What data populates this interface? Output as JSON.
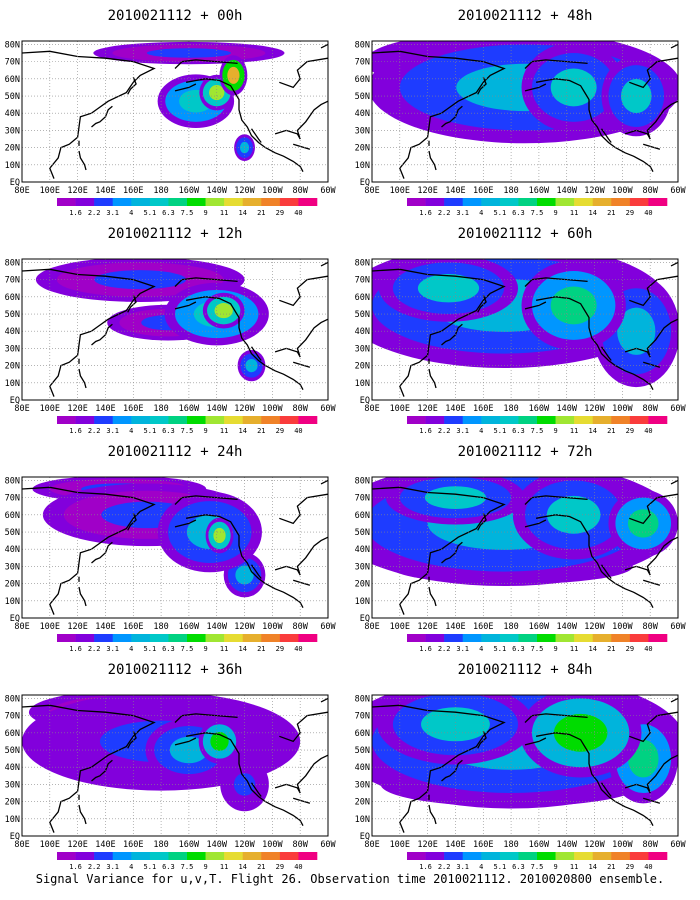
{
  "footer": "Signal Variance for u,v,T. Flight 26. Observation time 2010021112. 2010020800 ensemble.",
  "colorbar": {
    "labels": [
      "1.6",
      "2.2",
      "3.1",
      "4",
      "5.1",
      "6.3",
      "7.5",
      "9",
      "11",
      "14",
      "21",
      "29",
      "40"
    ],
    "colors": [
      "#a000c8",
      "#8200dc",
      "#1e3cff",
      "#0096ff",
      "#00b4dc",
      "#00c8c8",
      "#00d282",
      "#00dc00",
      "#a0e632",
      "#e6dc32",
      "#e6af2d",
      "#f08228",
      "#fa3c3c",
      "#f00082"
    ]
  },
  "axes": {
    "x_ticks": [
      "80E",
      "100E",
      "120E",
      "140E",
      "160E",
      "180",
      "160W",
      "140W",
      "120W",
      "100W",
      "80W",
      "60W"
    ],
    "y_ticks": [
      "EQ",
      "10N",
      "20N",
      "30N",
      "40N",
      "50N",
      "60N",
      "70N",
      "80N"
    ]
  },
  "chart_data": [
    {
      "type": "heatmap",
      "title": "2010021112 + 00h",
      "lead_hours": 0,
      "blobs": [
        {
          "lon": 205,
          "lat": 47,
          "value": 6,
          "rx": 22,
          "ry": 12
        },
        {
          "lon": 220,
          "lat": 52,
          "value": 9,
          "rx": 10,
          "ry": 8
        },
        {
          "lon": 232,
          "lat": 62,
          "value": 14,
          "rx": 8,
          "ry": 9
        },
        {
          "lon": 200,
          "lat": 75,
          "value": 2.5,
          "rx": 55,
          "ry": 5
        },
        {
          "lon": 240,
          "lat": 20,
          "value": 5,
          "rx": 6,
          "ry": 6
        }
      ]
    },
    {
      "type": "heatmap",
      "title": "2010021112 + 12h",
      "lead_hours": 12,
      "blobs": [
        {
          "lon": 220,
          "lat": 50,
          "value": 6,
          "rx": 30,
          "ry": 14
        },
        {
          "lon": 225,
          "lat": 52,
          "value": 9,
          "rx": 12,
          "ry": 8
        },
        {
          "lon": 165,
          "lat": 70,
          "value": 2.5,
          "rx": 60,
          "ry": 10
        },
        {
          "lon": 245,
          "lat": 20,
          "value": 5,
          "rx": 8,
          "ry": 7
        },
        {
          "lon": 185,
          "lat": 45,
          "value": 2.5,
          "rx": 35,
          "ry": 8
        }
      ]
    },
    {
      "type": "heatmap",
      "title": "2010021112 + 24h",
      "lead_hours": 24,
      "blobs": [
        {
          "lon": 215,
          "lat": 50,
          "value": 5,
          "rx": 30,
          "ry": 18
        },
        {
          "lon": 222,
          "lat": 48,
          "value": 9,
          "rx": 8,
          "ry": 8
        },
        {
          "lon": 170,
          "lat": 60,
          "value": 2.5,
          "rx": 60,
          "ry": 14
        },
        {
          "lon": 240,
          "lat": 25,
          "value": 4,
          "rx": 12,
          "ry": 10
        },
        {
          "lon": 150,
          "lat": 75,
          "value": 2.2,
          "rx": 50,
          "ry": 6
        }
      ]
    },
    {
      "type": "heatmap",
      "title": "2010021112 + 36h",
      "lead_hours": 36,
      "blobs": [
        {
          "lon": 180,
          "lat": 55,
          "value": 3,
          "rx": 80,
          "ry": 22
        },
        {
          "lon": 222,
          "lat": 55,
          "value": 7.5,
          "rx": 12,
          "ry": 10
        },
        {
          "lon": 200,
          "lat": 50,
          "value": 4,
          "rx": 25,
          "ry": 14
        },
        {
          "lon": 240,
          "lat": 30,
          "value": 3,
          "rx": 14,
          "ry": 12
        },
        {
          "lon": 160,
          "lat": 72,
          "value": 2.5,
          "rx": 60,
          "ry": 10
        }
      ]
    },
    {
      "type": "heatmap",
      "title": "2010021112 + 48h",
      "lead_hours": 48,
      "blobs": [
        {
          "lon": 190,
          "lat": 55,
          "value": 4,
          "rx": 90,
          "ry": 25
        },
        {
          "lon": 225,
          "lat": 55,
          "value": 5.1,
          "rx": 30,
          "ry": 20
        },
        {
          "lon": 150,
          "lat": 70,
          "value": 3.1,
          "rx": 60,
          "ry": 12
        },
        {
          "lon": 270,
          "lat": 50,
          "value": 5.1,
          "rx": 20,
          "ry": 18
        },
        {
          "lon": 170,
          "lat": 40,
          "value": 2.2,
          "rx": 60,
          "ry": 8
        }
      ]
    },
    {
      "type": "heatmap",
      "title": "2010021112 + 60h",
      "lead_hours": 60,
      "blobs": [
        {
          "lon": 175,
          "lat": 55,
          "value": 4,
          "rx": 95,
          "ry": 28
        },
        {
          "lon": 225,
          "lat": 55,
          "value": 6.3,
          "rx": 30,
          "ry": 20
        },
        {
          "lon": 135,
          "lat": 65,
          "value": 5.1,
          "rx": 40,
          "ry": 15
        },
        {
          "lon": 270,
          "lat": 40,
          "value": 4,
          "rx": 25,
          "ry": 25
        },
        {
          "lon": 170,
          "lat": 35,
          "value": 2.2,
          "rx": 60,
          "ry": 8
        }
      ]
    },
    {
      "type": "heatmap",
      "title": "2010021112 + 72h",
      "lead_hours": 72,
      "blobs": [
        {
          "lon": 175,
          "lat": 55,
          "value": 4,
          "rx": 100,
          "ry": 28
        },
        {
          "lon": 225,
          "lat": 60,
          "value": 5.1,
          "rx": 35,
          "ry": 20
        },
        {
          "lon": 140,
          "lat": 70,
          "value": 5.1,
          "rx": 40,
          "ry": 12
        },
        {
          "lon": 275,
          "lat": 55,
          "value": 6.3,
          "rx": 20,
          "ry": 15
        },
        {
          "lon": 180,
          "lat": 30,
          "value": 2.2,
          "rx": 70,
          "ry": 8
        }
      ]
    },
    {
      "type": "heatmap",
      "title": "2010021112 + 84h",
      "lead_hours": 84,
      "blobs": [
        {
          "lon": 180,
          "lat": 55,
          "value": 4,
          "rx": 100,
          "ry": 30
        },
        {
          "lon": 230,
          "lat": 60,
          "value": 7.5,
          "rx": 35,
          "ry": 20
        },
        {
          "lon": 140,
          "lat": 65,
          "value": 5.1,
          "rx": 45,
          "ry": 18
        },
        {
          "lon": 275,
          "lat": 45,
          "value": 6.3,
          "rx": 20,
          "ry": 20
        },
        {
          "lon": 180,
          "lat": 30,
          "value": 2.2,
          "rx": 75,
          "ry": 10
        }
      ]
    }
  ]
}
